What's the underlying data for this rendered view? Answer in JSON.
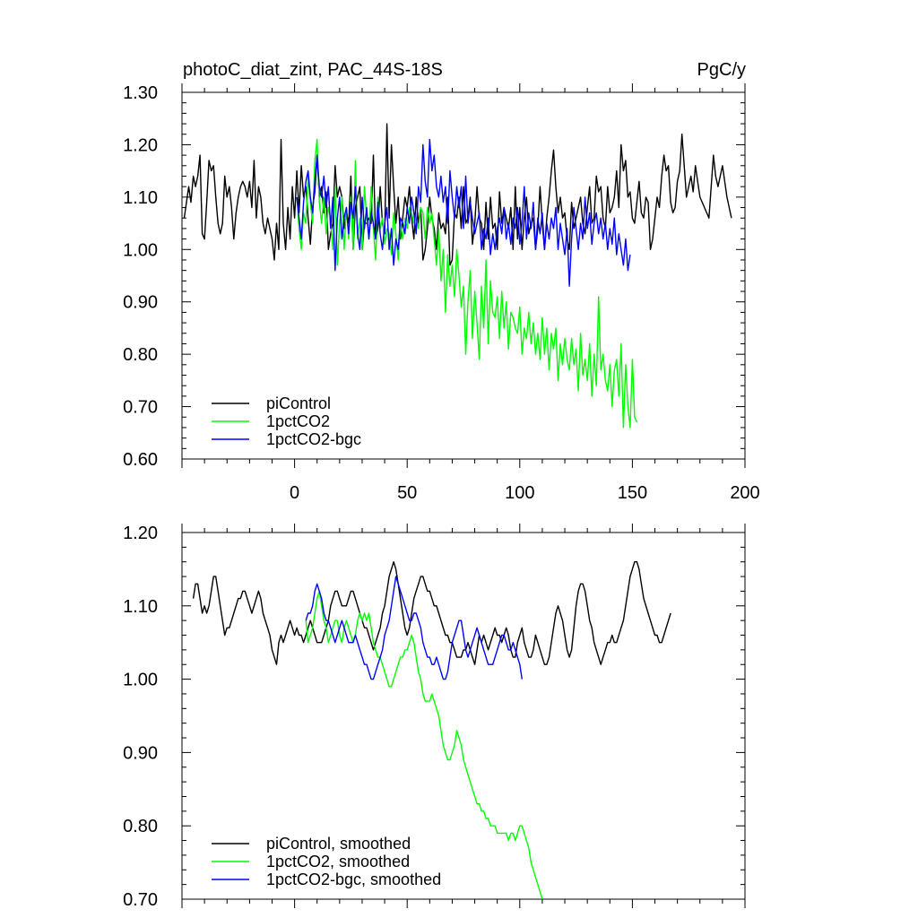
{
  "chart_data": [
    {
      "type": "line",
      "title_left": "photoC_diat_zint, PAC_44S-18S",
      "title_right": "PgC/y",
      "xlim": [
        -50,
        200
      ],
      "ylim": [
        0.6,
        1.3
      ],
      "xticks": [
        0,
        50,
        100,
        150,
        200
      ],
      "xtick_labels": [
        "0",
        "50",
        "100",
        "150",
        "200"
      ],
      "yticks": [
        0.6,
        0.7,
        0.8,
        0.9,
        1.0,
        1.1,
        1.2,
        1.3
      ],
      "ytick_labels": [
        "0.60",
        "0.70",
        "0.80",
        "0.90",
        "1.00",
        "1.10",
        "1.20",
        "1.30"
      ],
      "legend_position": "bottom-left",
      "series": [
        {
          "name": "piControl",
          "color": "#000000",
          "x_start": -49,
          "values": [
            1.06,
            1.09,
            1.12,
            1.09,
            1.14,
            1.12,
            1.14,
            1.18,
            1.03,
            1.02,
            1.09,
            1.17,
            1.15,
            1.16,
            1.1,
            1.05,
            1.03,
            1.05,
            1.14,
            1.1,
            1.12,
            1.08,
            1.02,
            1.07,
            1.1,
            1.12,
            1.13,
            1.12,
            1.1,
            1.13,
            1.08,
            1.17,
            1.06,
            1.12,
            1.1,
            1.05,
            1.03,
            1.06,
            1.04,
            1.02,
            0.98,
            1.05,
            1.0,
            1.21,
            1.05,
            1.0,
            1.08,
            1.02,
            1.12,
            1.06,
            1.15,
            1.07,
            1.16,
            1.1,
            1.12,
            1.06,
            1.01,
            1.08,
            1.11,
            1.18,
            1.1,
            1.12,
            1.07,
            1.11,
            1.0,
            1.03,
            1.05,
            1.16,
            1.1,
            1.12,
            1.1,
            1.04,
            1.07,
            1.05,
            1.14,
            1.0,
            1.08,
            1.1,
            1.12,
            1.0,
            1.05,
            1.05,
            1.06,
            1.05,
            1.18,
            1.02,
            1.04,
            1.12,
            1.05,
            1.03,
            1.24,
            1.06,
            1.2,
            1.12,
            1.05,
            1.1,
            1.02,
            1.06,
            1.1,
            1.08,
            1.12,
            1.06,
            1.02,
            1.1,
            1.05,
            1.08,
            0.98,
            1.0,
            1.04,
            1.1,
            1.06,
            1.04,
            1.0,
            1.07,
            1.04,
            1.05,
            1.03,
            1.1,
            0.97,
            0.98,
            1.07,
            1.06,
            1.1,
            1.04,
            1.12,
            1.05,
            1.06,
            1.1,
            1.01,
            1.05,
            1.12,
            1.06,
            1.05,
            1.0,
            1.09,
            1.02,
            1.1,
            1.04,
            1.05,
            1.0,
            1.11,
            1.05,
            1.08,
            1.06,
            1.04,
            1.08,
            1.0,
            1.12,
            1.02,
            1.08,
            1.0,
            1.06,
            1.1,
            1.03,
            1.05,
            1.06,
            1.0,
            1.04,
            1.12,
            1.05,
            1.0,
            1.06,
            1.1,
            1.15,
            1.19,
            1.12,
            1.07,
            1.1,
            1.06,
            1.07,
            1.02,
            1.0,
            1.09,
            1.04,
            1.06,
            1.08,
            1.1,
            1.05,
            1.03,
            1.08,
            1.12,
            1.05,
            1.06,
            1.14,
            1.11,
            1.12,
            1.06,
            1.04,
            1.12,
            1.07,
            1.08,
            1.1,
            1.15,
            1.08,
            1.2,
            1.15,
            1.17,
            1.1,
            1.11,
            1.06,
            1.05,
            1.09,
            1.13,
            1.07,
            1.06,
            1.1,
            1.09,
            1.0,
            1.02,
            1.06,
            1.1,
            1.08,
            1.14,
            1.18,
            1.15,
            1.16,
            1.09,
            1.07,
            1.08,
            1.13,
            1.15,
            1.22,
            1.16,
            1.1,
            1.12,
            1.14,
            1.11,
            1.16,
            1.13,
            1.1,
            1.09,
            1.08,
            1.07,
            1.06,
            1.12,
            1.18,
            1.14,
            1.12,
            1.14,
            1.16,
            1.13,
            1.1,
            1.08,
            1.06
          ]
        },
        {
          "name": "1pctCO2",
          "color": "#00ff00",
          "x_start": 1,
          "values": [
            1.1,
            1.04,
            1.0,
            1.07,
            1.05,
            1.14,
            1.09,
            1.05,
            1.17,
            1.21,
            1.09,
            1.05,
            1.1,
            1.03,
            1.08,
            1.06,
            1.0,
            1.12,
            0.97,
            1.05,
            1.1,
            1.0,
            1.08,
            1.02,
            1.1,
            1.0,
            1.17,
            1.02,
            1.06,
            1.0,
            1.12,
            1.06,
            1.02,
            1.12,
            1.04,
            0.98,
            1.1,
            1.04,
            1.06,
            1.01,
            1.04,
            1.03,
            0.99,
            1.07,
            1.03,
            0.98,
            1.05,
            1.02,
            1.06,
            1.04,
            1.08,
            1.07,
            1.05,
            1.06,
            1.04,
            1.08,
            1.07,
            1.02,
            1.08,
            1.05,
            1.07,
            1.02,
            0.97,
            1.04,
            0.94,
            1.0,
            0.88,
            0.99,
            0.93,
            0.97,
            0.91,
            1.0,
            0.95,
            0.89,
            0.93,
            0.8,
            0.9,
            0.96,
            0.83,
            0.92,
            0.86,
            0.79,
            0.93,
            0.85,
            0.98,
            0.82,
            0.94,
            0.88,
            0.87,
            0.91,
            0.83,
            0.92,
            0.85,
            0.9,
            0.81,
            0.88,
            0.87,
            0.85,
            0.84,
            0.89,
            0.8,
            0.85,
            0.83,
            0.88,
            0.82,
            0.86,
            0.8,
            0.84,
            0.79,
            0.87,
            0.8,
            0.85,
            0.77,
            0.84,
            0.81,
            0.85,
            0.75,
            0.82,
            0.78,
            0.83,
            0.79,
            0.77,
            0.83,
            0.78,
            0.81,
            0.73,
            0.84,
            0.76,
            0.79,
            0.75,
            0.82,
            0.72,
            0.8,
            0.74,
            0.91,
            0.77,
            0.8,
            0.75,
            0.73,
            0.78,
            0.7,
            0.77,
            0.79,
            0.72,
            0.82,
            0.66,
            0.78,
            0.7,
            0.66,
            0.79,
            0.68,
            0.67
          ]
        },
        {
          "name": "1pctCO2-bgc",
          "color": "#0000ff",
          "x_start": 1,
          "values": [
            1.1,
            1.06,
            1.02,
            1.09,
            1.13,
            1.15,
            1.1,
            1.07,
            1.13,
            1.18,
            1.12,
            1.1,
            1.14,
            1.08,
            1.12,
            1.04,
            1.1,
            0.96,
            1.06,
            1.1,
            1.02,
            1.06,
            1.08,
            1.03,
            1.09,
            1.06,
            1.12,
            1.03,
            1.0,
            1.1,
            1.04,
            1.08,
            1.02,
            1.07,
            1.05,
            1.02,
            1.09,
            1.03,
            1.0,
            1.05,
            1.08,
            1.0,
            1.04,
            0.97,
            1.02,
            1.0,
            1.06,
            1.05,
            1.03,
            1.08,
            1.05,
            1.1,
            1.07,
            1.03,
            1.12,
            1.09,
            1.2,
            1.13,
            1.1,
            1.21,
            1.15,
            1.18,
            1.12,
            1.1,
            1.14,
            1.09,
            1.12,
            1.05,
            1.15,
            1.1,
            1.06,
            1.12,
            1.08,
            1.12,
            1.04,
            1.14,
            1.05,
            1.09,
            1.06,
            1.03,
            1.05,
            1.07,
            1.0,
            1.04,
            1.02,
            1.06,
            0.99,
            1.03,
            1.0,
            1.04,
            1.06,
            1.03,
            1.08,
            1.02,
            1.05,
            1.01,
            1.06,
            1.04,
            1.08,
            1.01,
            1.05,
            1.12,
            1.02,
            1.07,
            1.04,
            1.09,
            1.0,
            1.06,
            1.03,
            1.07,
            1.0,
            1.05,
            1.02,
            1.06,
            1.04,
            1.08,
            1.0,
            1.05,
            1.02,
            0.99,
            1.04,
            0.93,
            1.02,
            1.08,
            1.04,
            1.0,
            1.05,
            1.02,
            1.1,
            1.04,
            1.07,
            1.01,
            1.05,
            1.07,
            1.03,
            1.06,
            1.02,
            1.05,
            1.0,
            1.04,
            1.01,
            1.06,
            0.99,
            1.03,
            1.0,
            0.97,
            1.02,
            0.96,
            0.99
          ]
        }
      ]
    },
    {
      "type": "line",
      "xlim": [
        -50,
        200
      ],
      "ylim": [
        0.7,
        1.2
      ],
      "xticks": [
        0,
        50,
        100,
        150,
        200
      ],
      "yticks": [
        0.7,
        0.8,
        0.9,
        1.0,
        1.1,
        1.2
      ],
      "ytick_labels": [
        "0.70",
        "0.80",
        "0.90",
        "1.00",
        "1.10",
        "1.20"
      ],
      "legend_position": "bottom-left",
      "series": [
        {
          "name": "piControl, smoothed",
          "color": "#000000",
          "x_start": -45,
          "values": [
            1.11,
            1.13,
            1.13,
            1.11,
            1.09,
            1.1,
            1.09,
            1.1,
            1.12,
            1.14,
            1.14,
            1.12,
            1.1,
            1.08,
            1.06,
            1.07,
            1.07,
            1.08,
            1.09,
            1.1,
            1.11,
            1.11,
            1.12,
            1.12,
            1.11,
            1.1,
            1.09,
            1.1,
            1.11,
            1.12,
            1.11,
            1.09,
            1.08,
            1.07,
            1.06,
            1.04,
            1.03,
            1.02,
            1.05,
            1.06,
            1.05,
            1.06,
            1.07,
            1.08,
            1.07,
            1.06,
            1.07,
            1.06,
            1.06,
            1.05,
            1.06,
            1.07,
            1.08,
            1.07,
            1.06,
            1.05,
            1.05,
            1.05,
            1.06,
            1.07,
            1.08,
            1.1,
            1.11,
            1.12,
            1.12,
            1.11,
            1.1,
            1.1,
            1.1,
            1.11,
            1.12,
            1.12,
            1.11,
            1.1,
            1.09,
            1.08,
            1.07,
            1.07,
            1.06,
            1.05,
            1.04,
            1.05,
            1.06,
            1.07,
            1.09,
            1.1,
            1.12,
            1.14,
            1.15,
            1.16,
            1.15,
            1.13,
            1.11,
            1.09,
            1.07,
            1.06,
            1.07,
            1.09,
            1.11,
            1.12,
            1.13,
            1.14,
            1.14,
            1.13,
            1.12,
            1.12,
            1.11,
            1.1,
            1.1,
            1.09,
            1.08,
            1.07,
            1.06,
            1.06,
            1.05,
            1.05,
            1.04,
            1.03,
            1.03,
            1.03,
            1.04,
            1.04,
            1.05,
            1.04,
            1.03,
            1.02,
            1.04,
            1.06,
            1.05,
            1.06,
            1.05,
            1.04,
            1.05,
            1.06,
            1.07,
            1.06,
            1.06,
            1.05,
            1.06,
            1.07,
            1.06,
            1.04,
            1.03,
            1.03,
            1.05,
            1.06,
            1.07,
            1.05,
            1.04,
            1.03,
            1.03,
            1.04,
            1.06,
            1.05,
            1.04,
            1.03,
            1.02,
            1.02,
            1.03,
            1.05,
            1.07,
            1.09,
            1.1,
            1.09,
            1.08,
            1.06,
            1.04,
            1.03,
            1.04,
            1.07,
            1.1,
            1.12,
            1.13,
            1.13,
            1.12,
            1.1,
            1.08,
            1.07,
            1.05,
            1.04,
            1.03,
            1.02,
            1.03,
            1.04,
            1.05,
            1.05,
            1.06,
            1.05,
            1.05,
            1.06,
            1.07,
            1.08,
            1.1,
            1.12,
            1.14,
            1.15,
            1.16,
            1.16,
            1.15,
            1.13,
            1.11,
            1.1,
            1.09,
            1.08,
            1.07,
            1.06,
            1.06,
            1.05,
            1.05,
            1.06,
            1.07,
            1.08,
            1.09
          ]
        },
        {
          "name": "1pctCO2, smoothed",
          "color": "#00ff00",
          "x_start": 5,
          "values": [
            1.08,
            1.05,
            1.06,
            1.07,
            1.09,
            1.11,
            1.12,
            1.1,
            1.08,
            1.07,
            1.05,
            1.06,
            1.07,
            1.08,
            1.08,
            1.06,
            1.05,
            1.07,
            1.08,
            1.07,
            1.06,
            1.05,
            1.06,
            1.08,
            1.09,
            1.08,
            1.09,
            1.08,
            1.09,
            1.07,
            1.05,
            1.04,
            1.03,
            1.03,
            1.02,
            1.01,
            1.0,
            0.99,
            0.99,
            1.0,
            1.01,
            1.02,
            1.03,
            1.03,
            1.04,
            1.04,
            1.05,
            1.06,
            1.05,
            1.03,
            1.01,
            1.0,
            0.98,
            0.97,
            0.97,
            0.97,
            0.98,
            0.97,
            0.96,
            0.95,
            0.93,
            0.91,
            0.9,
            0.89,
            0.89,
            0.9,
            0.91,
            0.93,
            0.92,
            0.91,
            0.89,
            0.88,
            0.87,
            0.86,
            0.85,
            0.84,
            0.83,
            0.83,
            0.82,
            0.82,
            0.81,
            0.81,
            0.8,
            0.8,
            0.8,
            0.79,
            0.79,
            0.79,
            0.79,
            0.79,
            0.78,
            0.79,
            0.79,
            0.78,
            0.79,
            0.8,
            0.8,
            0.79,
            0.78,
            0.77,
            0.75,
            0.74,
            0.73,
            0.72,
            0.71,
            0.7
          ]
        },
        {
          "name": "1pctCO2-bgc, smoothed",
          "color": "#0000ff",
          "x_start": 5,
          "values": [
            1.08,
            1.09,
            1.09,
            1.1,
            1.12,
            1.13,
            1.12,
            1.11,
            1.09,
            1.08,
            1.08,
            1.07,
            1.06,
            1.05,
            1.06,
            1.07,
            1.08,
            1.07,
            1.06,
            1.05,
            1.05,
            1.05,
            1.06,
            1.05,
            1.04,
            1.03,
            1.02,
            1.02,
            1.01,
            1.0,
            1.0,
            1.01,
            1.02,
            1.03,
            1.04,
            1.06,
            1.07,
            1.08,
            1.1,
            1.12,
            1.14,
            1.13,
            1.12,
            1.11,
            1.1,
            1.09,
            1.08,
            1.08,
            1.09,
            1.09,
            1.08,
            1.07,
            1.05,
            1.04,
            1.03,
            1.03,
            1.02,
            1.02,
            1.03,
            1.02,
            1.01,
            1.0,
            1.0,
            1.01,
            1.03,
            1.05,
            1.06,
            1.07,
            1.08,
            1.08,
            1.06,
            1.04,
            1.03,
            1.04,
            1.05,
            1.06,
            1.07,
            1.06,
            1.05,
            1.04,
            1.03,
            1.02,
            1.02,
            1.02,
            1.03,
            1.04,
            1.05,
            1.06,
            1.06,
            1.05,
            1.04,
            1.04,
            1.05,
            1.04,
            1.03,
            1.02,
            1.0
          ]
        }
      ]
    }
  ]
}
